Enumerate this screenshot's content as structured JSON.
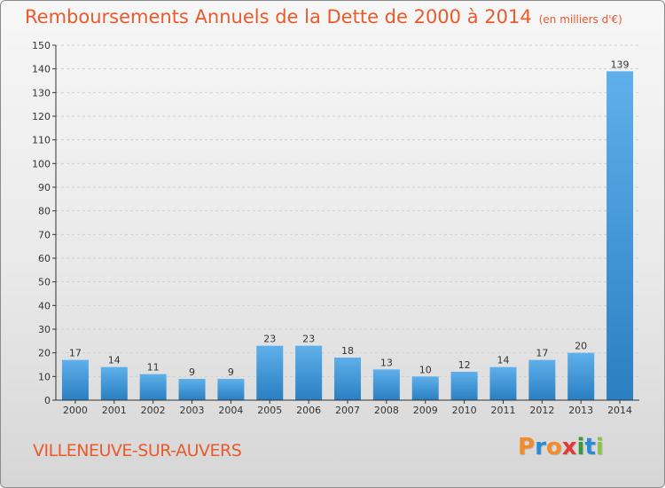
{
  "colors": {
    "title": "#ea5a2a",
    "bar_light": "#5fb0ea",
    "bar_dark": "#2a7fc2",
    "axis": "#333333",
    "grid": "#cfcfcf"
  },
  "header": {
    "title": "Remboursements Annuels de la Dette de 2000 à 2014",
    "unit": "(en milliers d'€)"
  },
  "footer": {
    "commune": "VILLENEUVE-SUR-AUVERS",
    "logo_text": "Proxiti",
    "logo_colors": [
      "#f28c28",
      "#2a8ad6",
      "#f28c28",
      "#e53935",
      "#3a9a3a",
      "#2a8ad6",
      "#8bc34a"
    ]
  },
  "chart_data": {
    "type": "bar",
    "title": "Remboursements Annuels de la Dette de 2000 à 2014",
    "unit_label": "(en milliers d'€)",
    "categories": [
      "2000",
      "2001",
      "2002",
      "2003",
      "2004",
      "2005",
      "2006",
      "2007",
      "2008",
      "2009",
      "2010",
      "2011",
      "2012",
      "2013",
      "2014"
    ],
    "values": [
      17,
      14,
      11,
      9,
      9,
      23,
      23,
      18,
      13,
      10,
      12,
      14,
      17,
      20,
      139
    ],
    "ylim": [
      0,
      150
    ],
    "yticks": [
      0,
      10,
      20,
      30,
      40,
      50,
      60,
      70,
      80,
      90,
      100,
      110,
      120,
      130,
      140,
      150
    ],
    "grid": true,
    "legend": "none"
  }
}
